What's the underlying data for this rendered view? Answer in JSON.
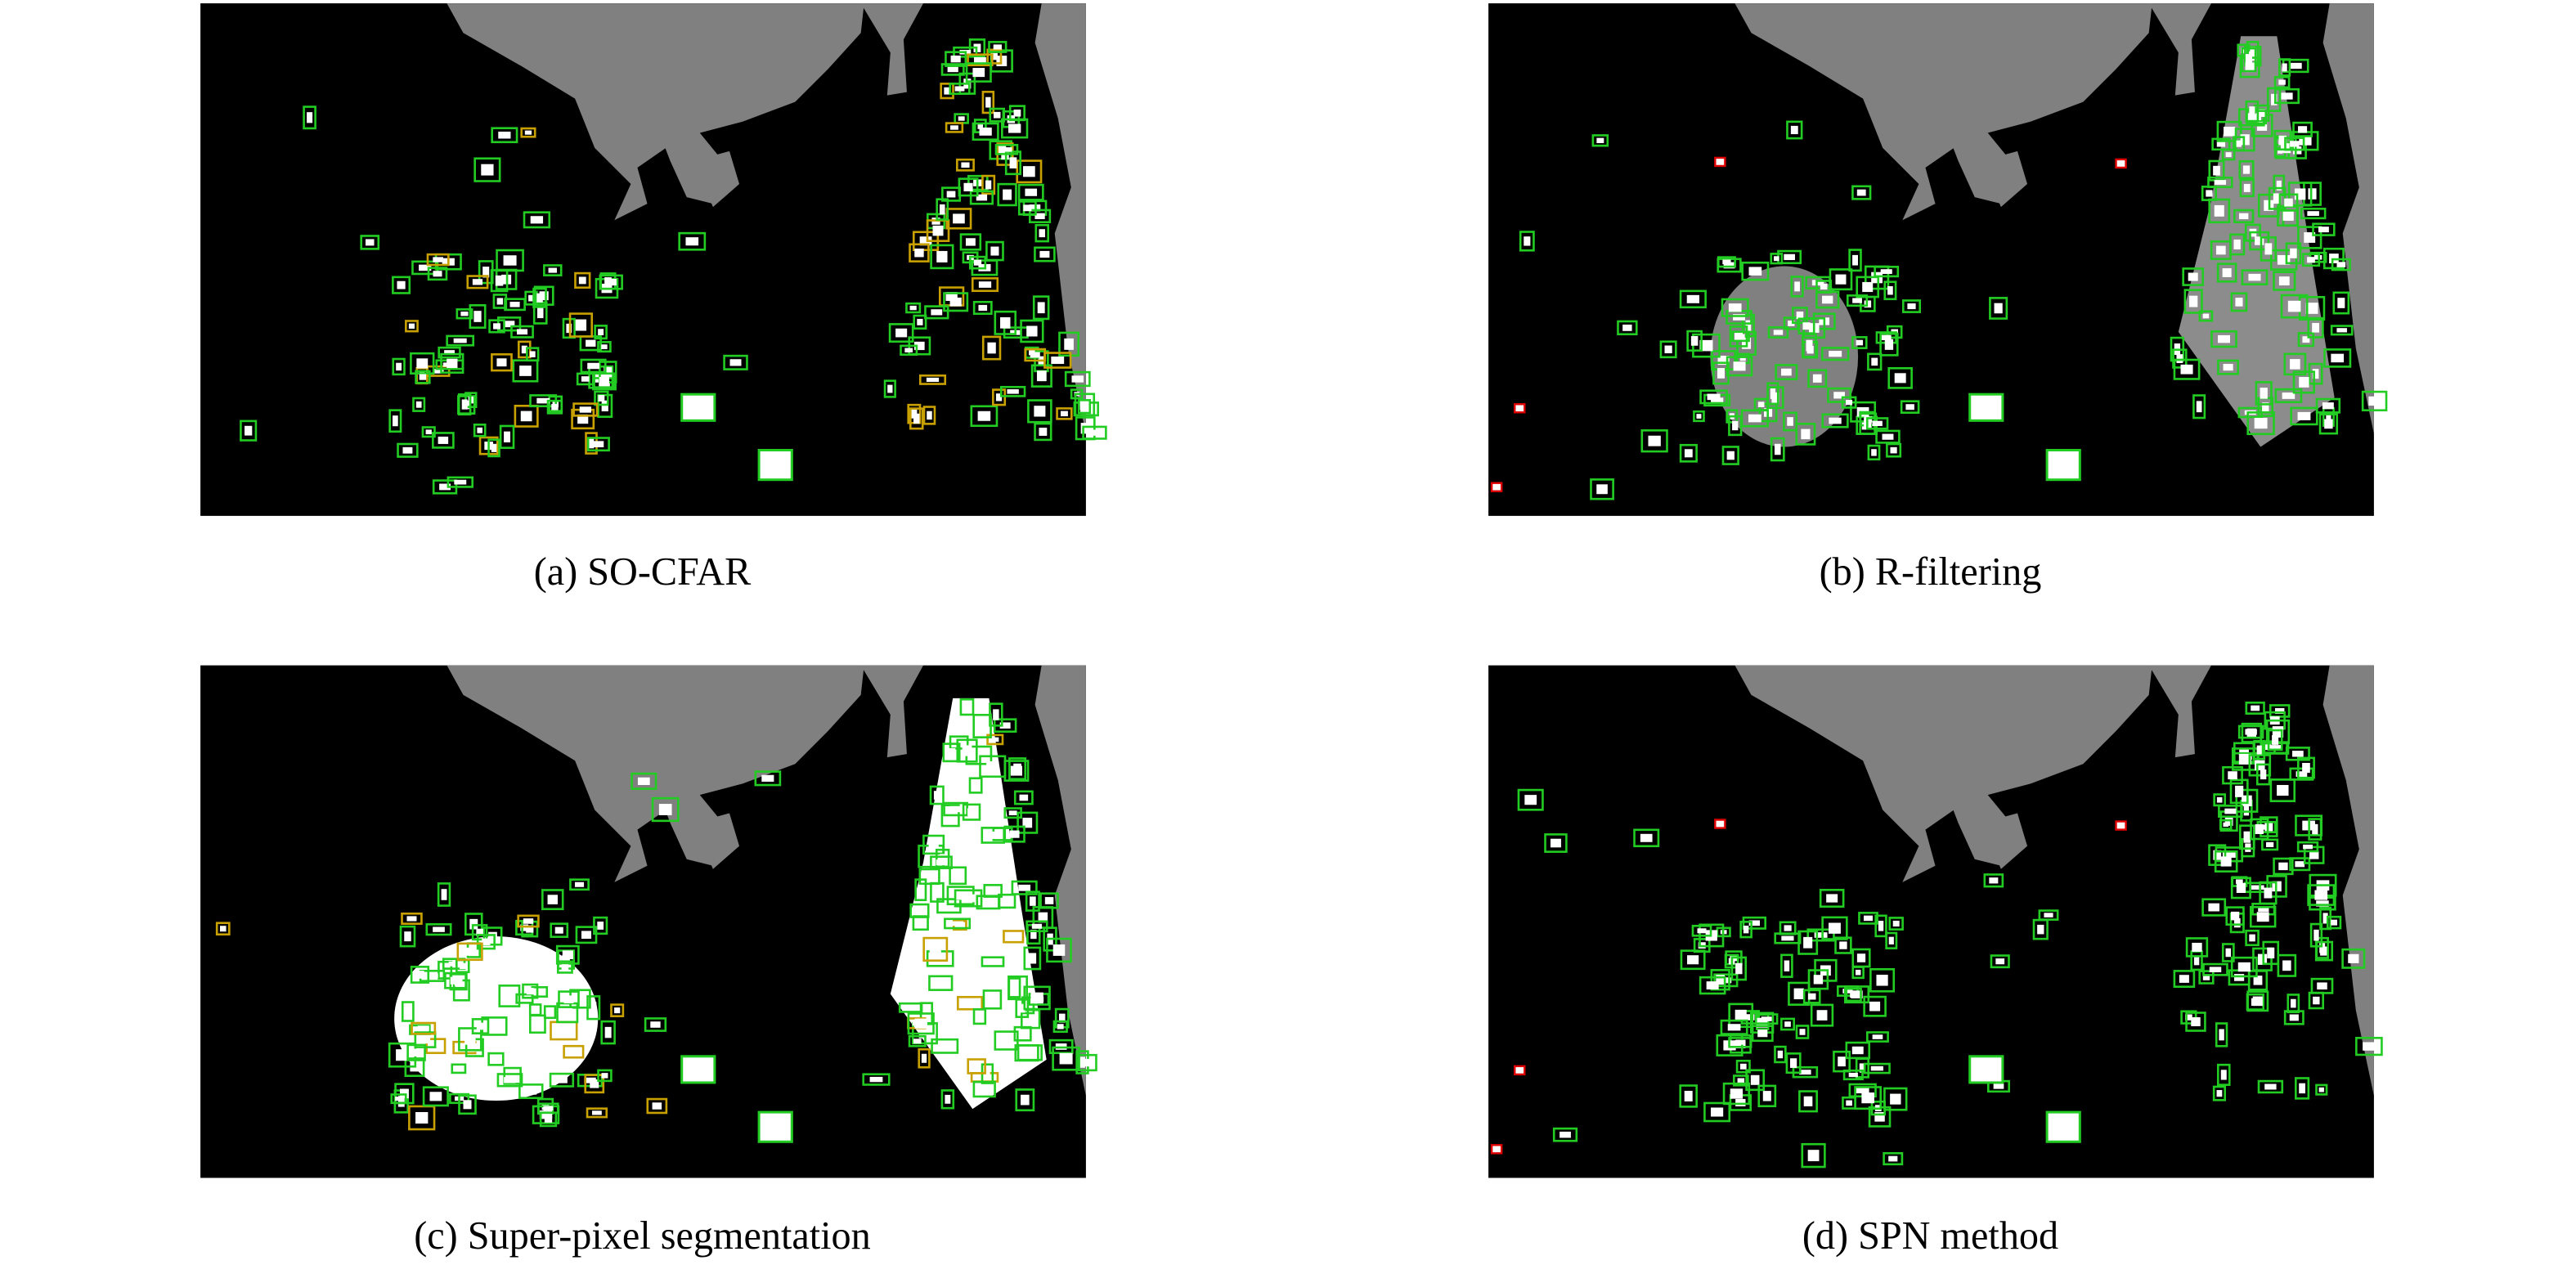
{
  "panels": [
    {
      "caption": "(a) SO-CFAR"
    },
    {
      "caption": "(b) R-filtering"
    },
    {
      "caption": "(c) Super-pixel segmentation"
    },
    {
      "caption": "(d) SPN method"
    }
  ]
}
